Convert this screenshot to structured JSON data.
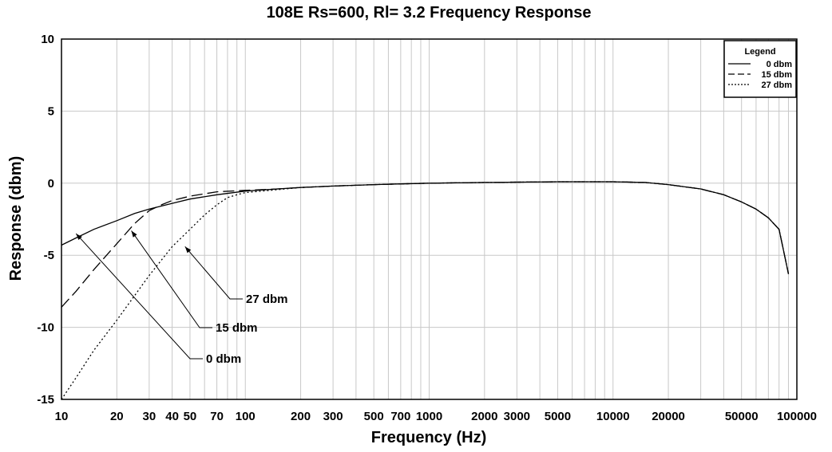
{
  "chart_data": {
    "type": "line",
    "title": "108E Rs=600, Rl= 3.2 Frequency Response",
    "xlabel": "Frequency (Hz)",
    "ylabel": "Response (dbm)",
    "xscale": "log",
    "xlim": [
      10,
      100000
    ],
    "ylim": [
      -15,
      10
    ],
    "xticks": [
      10,
      20,
      30,
      40,
      50,
      70,
      100,
      200,
      300,
      500,
      700,
      1000,
      2000,
      3000,
      5000,
      10000,
      20000,
      50000,
      100000
    ],
    "xtick_labels": [
      "10",
      "20",
      "30",
      "40",
      "50",
      "70",
      "100",
      "200",
      "300",
      "500",
      "700",
      "1000",
      "2000",
      "3000",
      "5000",
      "10000",
      "20000",
      "50000",
      "100000"
    ],
    "yticks": [
      10,
      5,
      0,
      -5,
      -10,
      -15
    ],
    "ytick_labels": [
      "10",
      "5",
      "0",
      "-5",
      "-10",
      "-15"
    ],
    "grid": true,
    "legend": {
      "title": "Legend",
      "position": "top-right",
      "entries": [
        {
          "label": "0 dbm",
          "style": "solid"
        },
        {
          "label": "15 dbm",
          "style": "dashed"
        },
        {
          "label": "27 dbm",
          "style": "dotted"
        }
      ]
    },
    "series": [
      {
        "name": "0 dbm",
        "style": "solid",
        "x": [
          10,
          12,
          15,
          20,
          25,
          30,
          40,
          50,
          70,
          100,
          150,
          200,
          300,
          500,
          700,
          1000,
          2000,
          5000,
          8000,
          10000,
          15000,
          20000,
          30000,
          40000,
          50000,
          60000,
          70000,
          80000,
          90000
        ],
        "y": [
          -4.3,
          -3.8,
          -3.2,
          -2.6,
          -2.1,
          -1.8,
          -1.4,
          -1.1,
          -0.8,
          -0.55,
          -0.4,
          -0.3,
          -0.2,
          -0.1,
          -0.05,
          0,
          0.05,
          0.1,
          0.1,
          0.1,
          0.05,
          -0.1,
          -0.4,
          -0.8,
          -1.3,
          -1.8,
          -2.4,
          -3.2,
          -6.3
        ]
      },
      {
        "name": "15 dbm",
        "style": "dashed",
        "x": [
          10,
          12,
          15,
          20,
          25,
          30,
          35,
          40,
          50,
          70,
          100,
          150,
          200,
          300,
          500,
          700,
          1000,
          2000,
          5000,
          8000,
          10000,
          15000,
          20000,
          30000,
          40000,
          50000,
          60000,
          70000,
          80000,
          90000
        ],
        "y": [
          -8.6,
          -7.5,
          -6.0,
          -4.2,
          -2.8,
          -1.9,
          -1.5,
          -1.2,
          -0.9,
          -0.6,
          -0.5,
          -0.4,
          -0.3,
          -0.2,
          -0.1,
          -0.05,
          0,
          0.05,
          0.1,
          0.1,
          0.1,
          0.05,
          -0.1,
          -0.4,
          -0.8,
          -1.3,
          -1.8,
          -2.4,
          -3.2,
          -6.3
        ]
      },
      {
        "name": "27 dbm",
        "style": "dotted",
        "x": [
          10,
          12,
          15,
          20,
          25,
          30,
          40,
          50,
          60,
          70,
          80,
          90,
          100,
          150,
          200,
          300,
          500,
          700,
          1000,
          2000,
          5000,
          8000,
          10000,
          15000,
          20000,
          30000,
          40000,
          50000,
          60000,
          70000,
          80000,
          90000
        ],
        "y": [
          -15.0,
          -13.5,
          -11.6,
          -9.5,
          -7.8,
          -6.4,
          -4.4,
          -3.2,
          -2.2,
          -1.5,
          -1.0,
          -0.8,
          -0.65,
          -0.45,
          -0.3,
          -0.2,
          -0.1,
          -0.05,
          0,
          0.05,
          0.1,
          0.1,
          0.1,
          0.05,
          -0.1,
          -0.4,
          -0.8,
          -1.3,
          -1.8,
          -2.4,
          -3.2,
          -6.3
        ]
      }
    ],
    "annotations": [
      {
        "text": "27 dbm",
        "x": 47,
        "y": -4.4
      },
      {
        "text": "15 dbm",
        "x": 24,
        "y": -3.3
      },
      {
        "text": "0 dbm",
        "x": 12,
        "y": -3.5
      }
    ]
  }
}
